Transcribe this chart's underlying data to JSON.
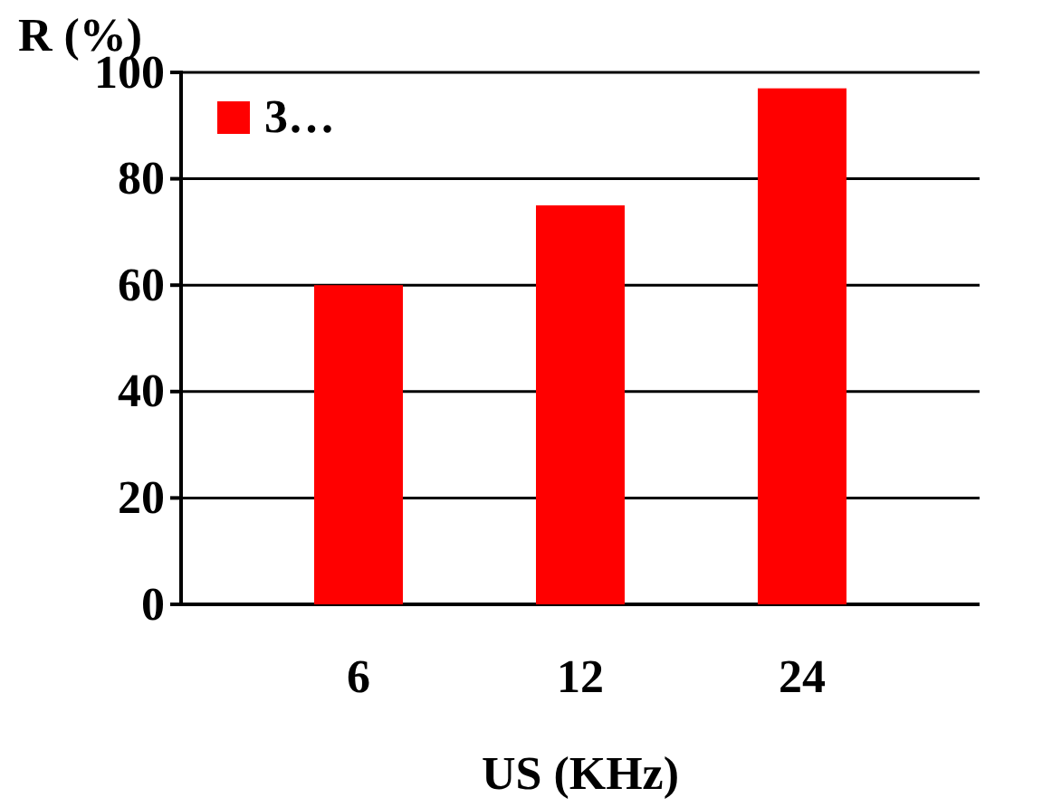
{
  "chart_data": {
    "type": "bar",
    "ylabel": "R (%)",
    "xlabel": "US (KHz)",
    "categories": [
      "6",
      "12",
      "24"
    ],
    "series": [
      {
        "name": "3…",
        "color": "#ff0000",
        "values": [
          60,
          75,
          97
        ]
      }
    ],
    "ylim": [
      0,
      100
    ],
    "yticks": [
      0,
      20,
      40,
      60,
      80,
      100
    ],
    "grid": "y",
    "legend": "top left"
  }
}
